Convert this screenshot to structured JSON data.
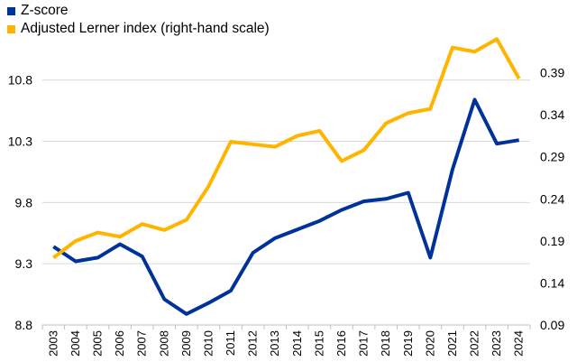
{
  "chart_data": {
    "type": "line",
    "categories": [
      "2003",
      "2004",
      "2005",
      "2006",
      "2007",
      "2008",
      "2009",
      "2010",
      "2011",
      "2012",
      "2013",
      "2014",
      "2015",
      "2016",
      "2017",
      "2018",
      "2019",
      "2020",
      "2021",
      "2022",
      "2023",
      "2024"
    ],
    "series": [
      {
        "name": "Z-score",
        "axis": "left",
        "color": "#003299",
        "values": [
          9.44,
          9.32,
          9.35,
          9.46,
          9.36,
          9.01,
          8.89,
          8.98,
          9.08,
          9.39,
          9.51,
          9.58,
          9.65,
          9.74,
          9.81,
          9.83,
          9.88,
          9.35,
          10.07,
          10.64,
          10.28,
          10.31
        ]
      },
      {
        "name": "Adjusted Lerner index (right-hand scale)",
        "axis": "right",
        "color": "#ffb400",
        "values": [
          0.17,
          0.19,
          0.2,
          0.195,
          0.21,
          0.203,
          0.215,
          0.255,
          0.308,
          0.305,
          0.302,
          0.315,
          0.321,
          0.285,
          0.298,
          0.33,
          0.342,
          0.347,
          0.42,
          0.415,
          0.43,
          0.383
        ]
      }
    ],
    "y_left": {
      "ylim": [
        8.8,
        11.1
      ],
      "ticks": [
        "8.8",
        "9.3",
        "9.8",
        "10.3",
        "10.8"
      ]
    },
    "y_right": {
      "ylim": [
        0.09,
        0.425
      ],
      "ticks": [
        "0.09",
        "0.14",
        "0.19",
        "0.24",
        "0.29",
        "0.34",
        "0.39"
      ]
    },
    "grid": "horizontal",
    "legend_position": "top-left"
  }
}
